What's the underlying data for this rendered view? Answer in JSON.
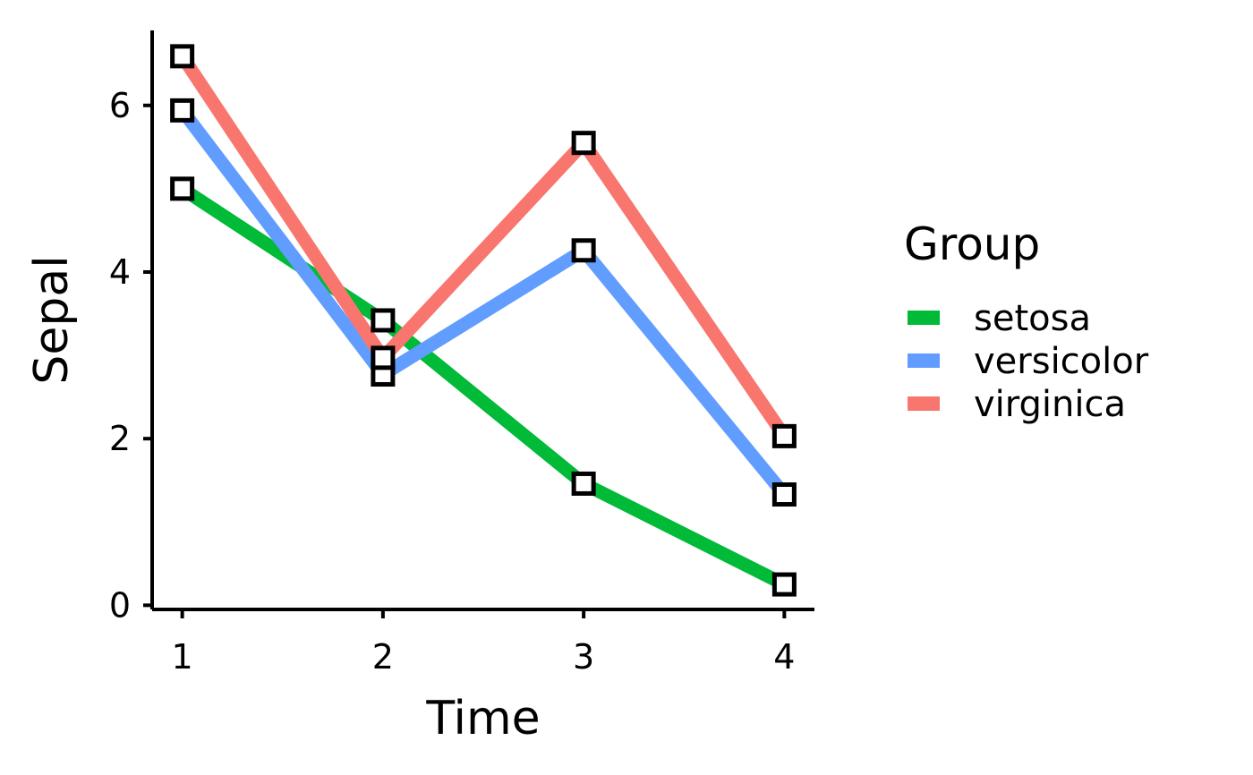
{
  "chart_data": {
    "type": "line",
    "title": "",
    "xlabel": "Time",
    "ylabel": "Sepal",
    "x": [
      1,
      2,
      3,
      4
    ],
    "xlim": [
      0.85,
      4.15
    ],
    "ylim": [
      -0.05,
      6.9
    ],
    "xticks": [
      "1",
      "2",
      "3",
      "4"
    ],
    "yticks": [
      "0",
      "2",
      "4",
      "6"
    ],
    "yticks_values": [
      0,
      2,
      4,
      6
    ],
    "grid": false,
    "legend": {
      "title": "Group",
      "placement": "right"
    },
    "marker": "open-square",
    "series": [
      {
        "name": "setosa",
        "color": "#00BA38",
        "values": [
          5.0,
          3.42,
          1.46,
          0.25
        ]
      },
      {
        "name": "versicolor",
        "color": "#619CFF",
        "values": [
          5.94,
          2.77,
          4.26,
          1.33
        ]
      },
      {
        "name": "virginica",
        "color": "#F8766D",
        "values": [
          6.59,
          2.97,
          5.55,
          2.03
        ]
      }
    ]
  }
}
